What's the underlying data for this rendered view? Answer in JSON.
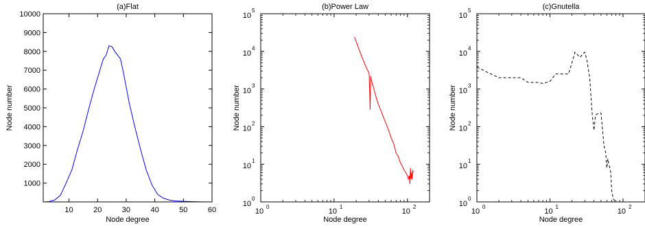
{
  "chart_data": [
    {
      "type": "line",
      "scale": "linear",
      "title": "(a)Flat",
      "xlabel": "Node degree",
      "ylabel": "Node number",
      "xlim": [
        1,
        60
      ],
      "ylim": [
        0,
        10000
      ],
      "xticks": [
        10,
        20,
        30,
        40,
        50,
        60
      ],
      "xtick_labels": [
        "10",
        "20",
        "30",
        "40",
        "50",
        "60"
      ],
      "yticks": [
        1000,
        2000,
        3000,
        4000,
        5000,
        6000,
        7000,
        8000,
        9000,
        10000
      ],
      "ytick_labels": [
        "1000",
        "2000",
        "3000",
        "4000",
        "5000",
        "6000",
        "7000",
        "8000",
        "9000",
        "10000"
      ],
      "color": "#0000ff",
      "dash": "",
      "grid": false,
      "series": [
        {
          "x": [
            1,
            3,
            5,
            7,
            9,
            11,
            13,
            15,
            17,
            19,
            21,
            22,
            23,
            24,
            25,
            26,
            27,
            28,
            29,
            31,
            33,
            35,
            37,
            39,
            41,
            43,
            45,
            47,
            50,
            53,
            55,
            57,
            60
          ],
          "y": [
            0,
            20,
            100,
            350,
            1000,
            1700,
            2800,
            3800,
            5000,
            6100,
            7100,
            7600,
            7800,
            8300,
            8250,
            8000,
            7800,
            7600,
            6900,
            5300,
            4000,
            2800,
            1700,
            900,
            400,
            200,
            100,
            50,
            30,
            20,
            10,
            5,
            0
          ]
        }
      ]
    },
    {
      "type": "line",
      "scale": "log",
      "title": "(b)Power Law",
      "xlabel": "Node degree",
      "ylabel": "Node number",
      "xlim": [
        1,
        200
      ],
      "ylim": [
        1,
        100000
      ],
      "xticks": [
        1,
        10,
        100
      ],
      "xtick_labels": [
        "10",
        "10",
        "10"
      ],
      "xtick_exponents": [
        "0",
        "1",
        "2"
      ],
      "yticks": [
        1,
        10,
        100,
        1000,
        10000,
        100000
      ],
      "ytick_labels": [
        "10",
        "10",
        "10",
        "10",
        "10",
        "10"
      ],
      "ytick_exponents": [
        "0",
        "1",
        "2",
        "3",
        "4",
        "5"
      ],
      "color": "#ff0000",
      "dash": "",
      "grid": false,
      "series": [
        {
          "x": [
            19,
            21,
            24,
            27,
            30,
            30.5,
            31,
            31.5,
            32,
            34,
            37,
            40,
            44,
            48,
            52,
            56,
            60,
            65,
            70,
            75,
            80,
            85,
            90,
            95,
            100,
            103,
            106,
            108,
            110,
            112,
            114,
            116,
            118,
            120
          ],
          "y": [
            24000,
            14000,
            7000,
            4000,
            2600,
            1000,
            280,
            2200,
            1800,
            1200,
            650,
            400,
            250,
            160,
            110,
            75,
            50,
            35,
            20,
            16,
            11,
            9,
            7,
            6,
            5,
            4,
            5,
            3,
            8,
            4,
            6,
            4,
            7,
            6
          ]
        }
      ]
    },
    {
      "type": "line",
      "scale": "log",
      "title": "(c)Gnutella",
      "xlabel": "Node degree",
      "ylabel": "Node number",
      "xlim": [
        1,
        200
      ],
      "ylim": [
        1,
        100000
      ],
      "xticks": [
        1,
        10,
        100
      ],
      "xtick_labels": [
        "10",
        "10",
        "10"
      ],
      "xtick_exponents": [
        "0",
        "1",
        "2"
      ],
      "yticks": [
        1,
        10,
        100,
        1000,
        10000,
        100000
      ],
      "ytick_labels": [
        "10",
        "10",
        "10",
        "10",
        "10",
        "10"
      ],
      "ytick_exponents": [
        "0",
        "1",
        "2",
        "3",
        "4",
        "5"
      ],
      "color": "#000000",
      "dash": "4,3",
      "grid": false,
      "series": [
        {
          "x": [
            1,
            1.5,
            2,
            3,
            4,
            5,
            6,
            7,
            8,
            9,
            10,
            12,
            15,
            18,
            20,
            22,
            24,
            26,
            28,
            30,
            32,
            35,
            38,
            40,
            42,
            45,
            50,
            55,
            58,
            60,
            62,
            64,
            66,
            68,
            70,
            72,
            74,
            76,
            78,
            80
          ],
          "y": [
            3800,
            2600,
            2000,
            2000,
            2000,
            1500,
            1500,
            1500,
            1400,
            1500,
            1600,
            2500,
            2500,
            2500,
            5000,
            9500,
            8000,
            7000,
            8500,
            9500,
            6000,
            2000,
            200,
            80,
            200,
            220,
            230,
            30,
            20,
            8,
            14,
            10,
            8,
            6,
            2,
            1.5,
            1.2,
            1.1,
            1,
            0.8
          ]
        }
      ]
    }
  ]
}
